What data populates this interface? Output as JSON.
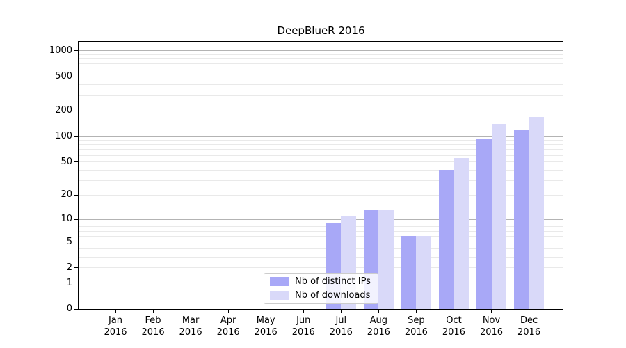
{
  "chart_data": {
    "type": "bar",
    "title": "DeepBlueR 2016",
    "categories": [
      "Jan",
      "Feb",
      "Mar",
      "Apr",
      "May",
      "Jun",
      "Jul",
      "Aug",
      "Sep",
      "Oct",
      "Nov",
      "Dec"
    ],
    "category_year": "2016",
    "series": [
      {
        "name": "Nb of distinct IPs",
        "color": "#a8a8f7",
        "values": [
          0,
          0,
          0,
          0,
          0,
          0,
          9,
          13,
          6,
          40,
          94,
          119
        ]
      },
      {
        "name": "Nb of downloads",
        "color": "#d9d9f9",
        "values": [
          0,
          0,
          0,
          0,
          0,
          0,
          11,
          13,
          6,
          56,
          140,
          170
        ]
      }
    ],
    "y_ticks": [
      0,
      1,
      2,
      5,
      10,
      20,
      50,
      100,
      200,
      500,
      1000
    ],
    "y_major_gridlines": [
      1,
      10,
      100,
      1000
    ],
    "y_scale": "log10(1+v)",
    "ylim": [
      0,
      1270
    ],
    "grid": "horizontal",
    "legend_position": "bottom-center"
  },
  "colors": {
    "bar_distinct_ips": "#a8a8f7",
    "bar_downloads": "#d9d9f9",
    "grid_major": "#b3b3b3",
    "grid_minor": "#e9e9e9",
    "axis_spine": "#000000",
    "text": "#000000",
    "legend_border": "#cccccc"
  }
}
